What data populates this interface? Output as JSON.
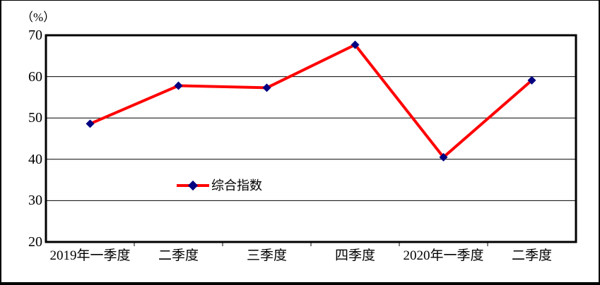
{
  "window": {
    "background_color": "#ffffff",
    "frame_border_color": "#000000"
  },
  "chart_data": {
    "type": "line",
    "title": "",
    "unit_label": "（%）",
    "categories": [
      "2019年一季度",
      "二季度",
      "三季度",
      "四季度",
      "2020年一季度",
      "二季度"
    ],
    "series": [
      {
        "name": "综合指数",
        "values": [
          48.6,
          57.8,
          57.3,
          67.7,
          40.5,
          59.1
        ],
        "line_color": "#FF0000",
        "marker": "diamond",
        "marker_color": "#000080"
      }
    ],
    "ylim": [
      20,
      70
    ],
    "yticks": [
      20,
      30,
      40,
      50,
      60,
      70
    ],
    "xlabel": "",
    "ylabel": "",
    "grid": "horizontal",
    "legend": {
      "label": "综合指数",
      "position": "inside-center-left"
    },
    "colors": {
      "axis": "#000000",
      "gridline": "#000000",
      "text": "#000000"
    }
  }
}
